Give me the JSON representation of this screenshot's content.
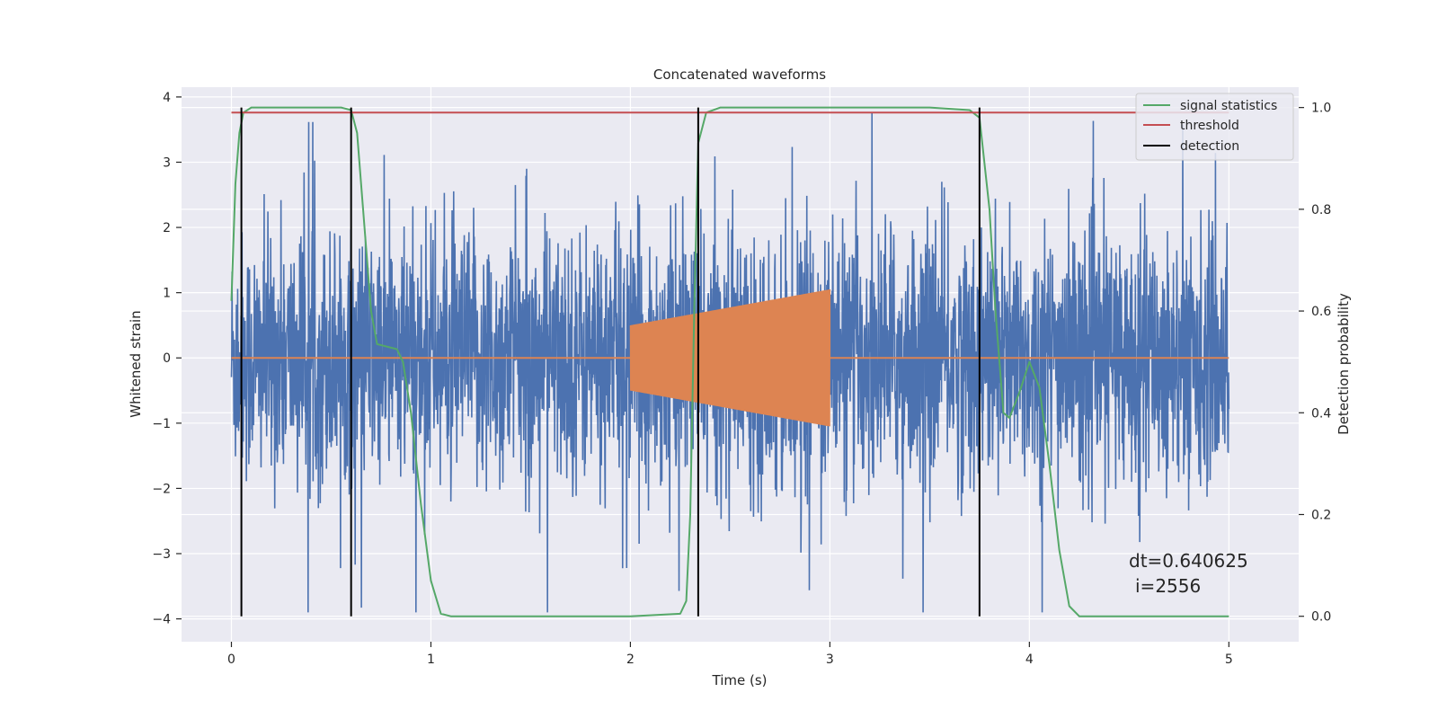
{
  "chart_data": {
    "type": "line",
    "title": "Concatenated waveforms",
    "xlabel": "Time (s)",
    "ylabel_left": "Whitened strain",
    "ylabel_right": "Detection probability",
    "xlim": [
      -0.25,
      5.35
    ],
    "ylim_left": [
      -4.35,
      4.15
    ],
    "ylim_right": [
      -0.05,
      1.04
    ],
    "xticks": [
      0,
      1,
      2,
      3,
      4,
      5
    ],
    "yticks_left": [
      -4,
      -3,
      -2,
      -1,
      0,
      1,
      2,
      3,
      4
    ],
    "yticks_right": [
      0.0,
      0.2,
      0.4,
      0.6,
      0.8,
      1.0
    ],
    "ytick_labels_right": [
      "0.0",
      "0.2",
      "0.4",
      "0.6",
      "0.8",
      "1.0"
    ],
    "grid": true,
    "legend_position": "top-right",
    "legend": [
      "signal statistics",
      "threshold",
      "detection"
    ],
    "colors": {
      "noise": "#4c72b0",
      "injection": "#dd8452",
      "signal_statistics": "#55a868",
      "threshold": "#c44e52",
      "detection": "#000000",
      "background": "#eaeaf2",
      "grid": "#ffffff"
    },
    "noise": {
      "x_range": [
        0,
        5
      ],
      "amplitude_typical": 1.2,
      "peak_range": [
        -3.9,
        3.75
      ]
    },
    "injections": [
      {
        "x_start": 2.0,
        "x_end": 3.0,
        "amp_start": 0.5,
        "amp_end": 1.05
      }
    ],
    "signal_statistics": {
      "x": [
        0,
        0.02,
        0.04,
        0.06,
        0.1,
        0.55,
        0.6,
        0.63,
        0.66,
        0.7,
        0.73,
        0.78,
        0.83,
        0.86,
        0.9,
        0.95,
        1.0,
        1.05,
        1.1,
        1.5,
        2.0,
        2.25,
        2.28,
        2.3,
        2.32,
        2.34,
        2.38,
        2.45,
        2.6,
        3.5,
        3.7,
        3.75,
        3.8,
        3.83,
        3.87,
        3.9,
        3.95,
        4.0,
        4.05,
        4.1,
        4.15,
        4.2,
        4.25,
        5.0
      ],
      "y": [
        0.62,
        0.85,
        0.95,
        0.99,
        1.0,
        1.0,
        0.995,
        0.95,
        0.8,
        0.6,
        0.535,
        0.53,
        0.525,
        0.5,
        0.4,
        0.22,
        0.07,
        0.005,
        0.0,
        0.0,
        0.0,
        0.005,
        0.03,
        0.2,
        0.6,
        0.93,
        0.99,
        1.0,
        1.0,
        1.0,
        0.995,
        0.98,
        0.8,
        0.6,
        0.4,
        0.39,
        0.44,
        0.5,
        0.45,
        0.3,
        0.13,
        0.02,
        0.0,
        0.0
      ]
    },
    "threshold": {
      "value": 0.99,
      "x_range": [
        0,
        5
      ]
    },
    "detections": [
      0.05,
      0.6,
      2.34,
      3.75
    ],
    "annotations": [
      "dt=0.640625",
      "i=2556"
    ]
  }
}
